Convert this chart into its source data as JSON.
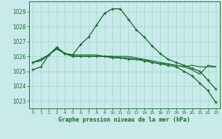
{
  "title": "Graphe pression niveau de la mer (hPa)",
  "bg_color": "#c8eaea",
  "grid_color": "#a8d8d0",
  "line_color": "#1a6b2a",
  "xlim": [
    -0.5,
    23.5
  ],
  "ylim": [
    1022.5,
    1029.7
  ],
  "yticks": [
    1023,
    1024,
    1025,
    1026,
    1027,
    1028,
    1029
  ],
  "xticks": [
    0,
    1,
    2,
    3,
    4,
    5,
    6,
    7,
    8,
    9,
    10,
    11,
    12,
    13,
    14,
    15,
    16,
    17,
    18,
    19,
    20,
    21,
    22,
    23
  ],
  "series": [
    {
      "x": [
        0,
        1,
        2,
        3,
        4,
        5,
        6,
        7,
        8,
        9,
        10,
        11,
        12,
        13,
        14,
        15,
        16,
        17,
        18,
        19,
        20,
        21,
        22,
        23
      ],
      "y": [
        1025.6,
        1025.8,
        1026.1,
        1026.6,
        1026.2,
        1026.1,
        1026.8,
        1027.3,
        1028.1,
        1028.9,
        1029.2,
        1029.2,
        1028.5,
        1027.8,
        1027.3,
        1026.7,
        1026.2,
        1025.8,
        1025.6,
        1025.4,
        1025.2,
        1025.0,
        1024.4,
        1023.8
      ],
      "marker": "+",
      "lw": 1.0
    },
    {
      "x": [
        0,
        1,
        2,
        3,
        4,
        5,
        6,
        7,
        8,
        9,
        10,
        11,
        12,
        13,
        14,
        15,
        16,
        17,
        18,
        19,
        20,
        21,
        22,
        23
      ],
      "y": [
        1025.6,
        1025.8,
        1026.1,
        1026.5,
        1026.2,
        1026.1,
        1026.1,
        1026.1,
        1026.1,
        1026.0,
        1026.0,
        1026.0,
        1026.0,
        1025.9,
        1025.8,
        1025.7,
        1025.6,
        1025.5,
        1025.4,
        1025.3,
        1025.1,
        1024.8,
        1025.4,
        1025.3
      ],
      "marker": null,
      "lw": 0.9
    },
    {
      "x": [
        0,
        1,
        2,
        3,
        4,
        5,
        6,
        7,
        8,
        9,
        10,
        11,
        12,
        13,
        14,
        15,
        16,
        17,
        18,
        19,
        20,
        21,
        22,
        23
      ],
      "y": [
        1025.6,
        1025.7,
        1026.1,
        1026.5,
        1026.2,
        1026.0,
        1026.0,
        1026.0,
        1026.0,
        1026.0,
        1026.0,
        1025.9,
        1025.9,
        1025.8,
        1025.8,
        1025.6,
        1025.5,
        1025.5,
        1025.4,
        1025.3,
        1025.4,
        1025.3,
        1025.3,
        1025.3
      ],
      "marker": null,
      "lw": 0.9
    },
    {
      "x": [
        0,
        1,
        2,
        3,
        4,
        5,
        6,
        7,
        8,
        9,
        10,
        11,
        12,
        13,
        14,
        15,
        16,
        17,
        18,
        19,
        20,
        21,
        22,
        23
      ],
      "y": [
        1025.1,
        1025.3,
        1026.1,
        1026.6,
        1026.2,
        1026.0,
        1026.0,
        1026.0,
        1026.0,
        1026.0,
        1025.9,
        1025.9,
        1025.8,
        1025.8,
        1025.7,
        1025.6,
        1025.5,
        1025.4,
        1025.3,
        1025.0,
        1024.7,
        1024.2,
        1023.7,
        1022.9
      ],
      "marker": "+",
      "lw": 1.0
    }
  ]
}
